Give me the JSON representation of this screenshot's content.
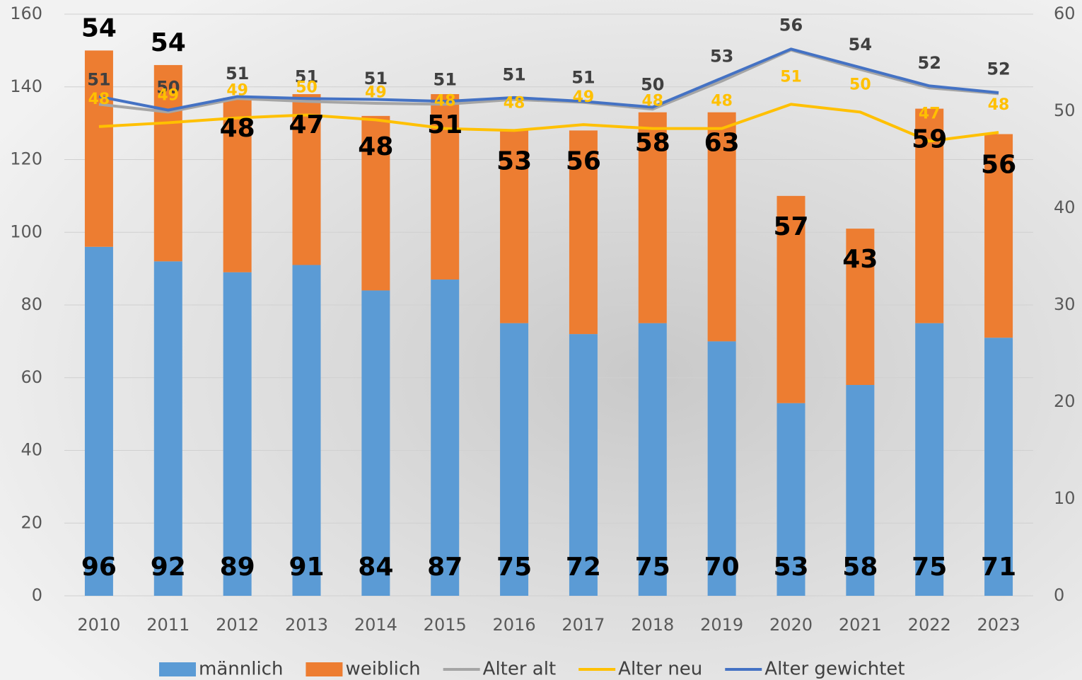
{
  "chart_data": {
    "type": "bar-line",
    "categories": [
      "2010",
      "2011",
      "2012",
      "2013",
      "2014",
      "2015",
      "2016",
      "2017",
      "2018",
      "2019",
      "2020",
      "2021",
      "2022",
      "2023"
    ],
    "series": [
      {
        "name": "männlich",
        "type": "bar",
        "color": "#5b9bd5",
        "values": [
          96,
          92,
          89,
          91,
          84,
          87,
          75,
          72,
          75,
          70,
          53,
          58,
          75,
          71
        ]
      },
      {
        "name": "weiblich",
        "type": "bar",
        "color": "#ed7d31",
        "values": [
          54,
          54,
          48,
          47,
          48,
          51,
          53,
          56,
          58,
          63,
          57,
          43,
          59,
          56
        ]
      },
      {
        "name": "Alter alt",
        "type": "line",
        "axis": "y2",
        "color": "#a5a5a5",
        "values": [
          50.7,
          49.9,
          51.3,
          51,
          50.8,
          50.7,
          51.2,
          50.9,
          50.2,
          53.1,
          56.3,
          54.3,
          52.4,
          51.8
        ],
        "value_labels": [
          "51",
          "50",
          "51",
          "51",
          "51",
          "51",
          "51",
          "51",
          "50",
          "53",
          "56",
          "54",
          "52",
          "52"
        ]
      },
      {
        "name": "Alter neu",
        "type": "line",
        "axis": "y2",
        "color": "#ffc000",
        "values": [
          48.4,
          48.8,
          49.3,
          49.6,
          49.1,
          48.2,
          48,
          48.6,
          48.2,
          48.2,
          50.7,
          49.9,
          46.9,
          47.8
        ],
        "value_labels": [
          "48",
          "49",
          "49",
          "50",
          "49",
          "48",
          "48",
          "49",
          "48",
          "48",
          "51",
          "50",
          "47",
          "48"
        ]
      },
      {
        "name": "Alter gewichtet",
        "type": "line",
        "axis": "y2",
        "color": "#4472c4",
        "values": [
          51.5,
          50.1,
          51.5,
          51.3,
          51.2,
          51,
          51.4,
          51,
          50.4,
          53.4,
          56.4,
          54.5,
          52.6,
          51.9
        ]
      }
    ],
    "ylim": [
      0,
      160
    ],
    "yticks": [
      0,
      20,
      40,
      60,
      80,
      100,
      120,
      140,
      160
    ],
    "y2lim": [
      0,
      60
    ],
    "y2ticks": [
      0,
      10,
      20,
      30,
      40,
      50,
      60
    ],
    "grid": true,
    "legend": "bottom"
  }
}
